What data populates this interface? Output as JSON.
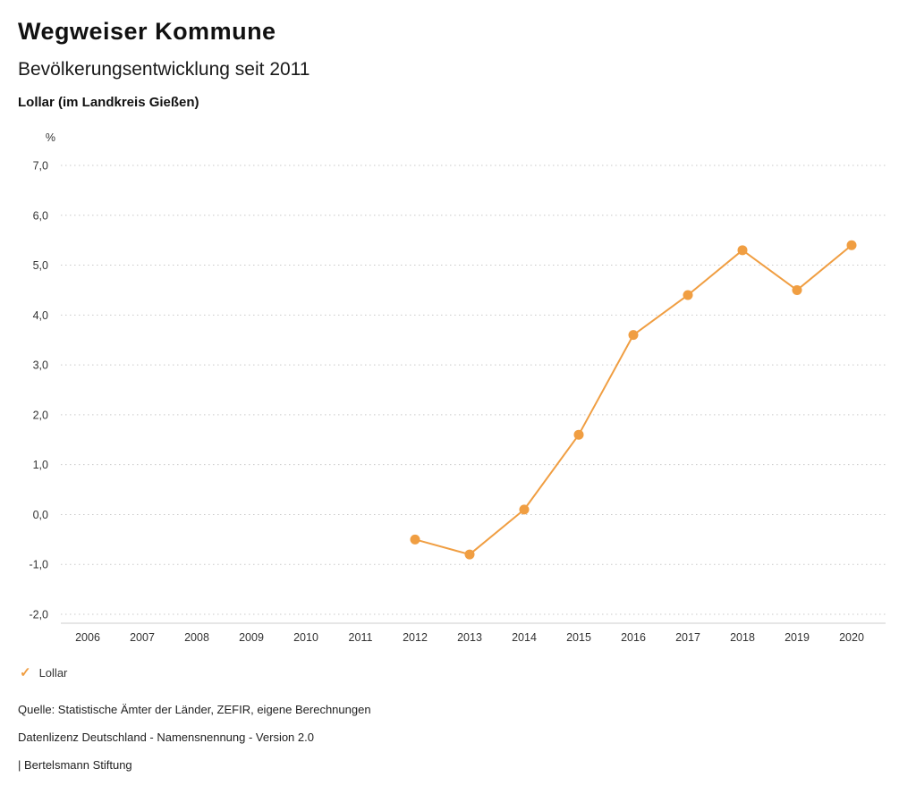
{
  "header": {
    "title": "Wegweiser Kommune",
    "subtitle": "Bevölkerungsentwicklung seit 2011",
    "location": "Lollar (im Landkreis Gießen)"
  },
  "legend": {
    "items": [
      {
        "label": "Lollar",
        "color": "#F09E42",
        "marker": "check"
      }
    ]
  },
  "footer": {
    "source": "Quelle: Statistische Ämter der Länder, ZEFIR, eigene Berechnungen",
    "license": "Datenlizenz Deutschland - Namensnennung - Version 2.0",
    "attribution": "| Bertelsmann Stiftung"
  },
  "chart_data": {
    "type": "line",
    "title": "Bevölkerungsentwicklung seit 2011",
    "xlabel": "",
    "ylabel": "%",
    "grid": "horizontal-dotted",
    "legend_position": "bottom-left",
    "x_axis": {
      "ticks": [
        2006,
        2007,
        2008,
        2009,
        2010,
        2011,
        2012,
        2013,
        2014,
        2015,
        2016,
        2017,
        2018,
        2019,
        2020
      ]
    },
    "y_axis": {
      "min": -2.0,
      "max": 7.0,
      "step": 1.0,
      "unit": "%",
      "decimal_separator": ","
    },
    "x": [
      2012,
      2013,
      2014,
      2015,
      2016,
      2017,
      2018,
      2019,
      2020
    ],
    "series": [
      {
        "name": "Lollar",
        "color": "#F09E42",
        "values": [
          -0.5,
          -0.8,
          0.1,
          1.6,
          3.6,
          4.4,
          5.3,
          4.5,
          5.4
        ]
      }
    ],
    "colors": {
      "gridline": "#c9c9c9",
      "axis_line": "#cccccc",
      "tick_text": "#333333"
    }
  }
}
